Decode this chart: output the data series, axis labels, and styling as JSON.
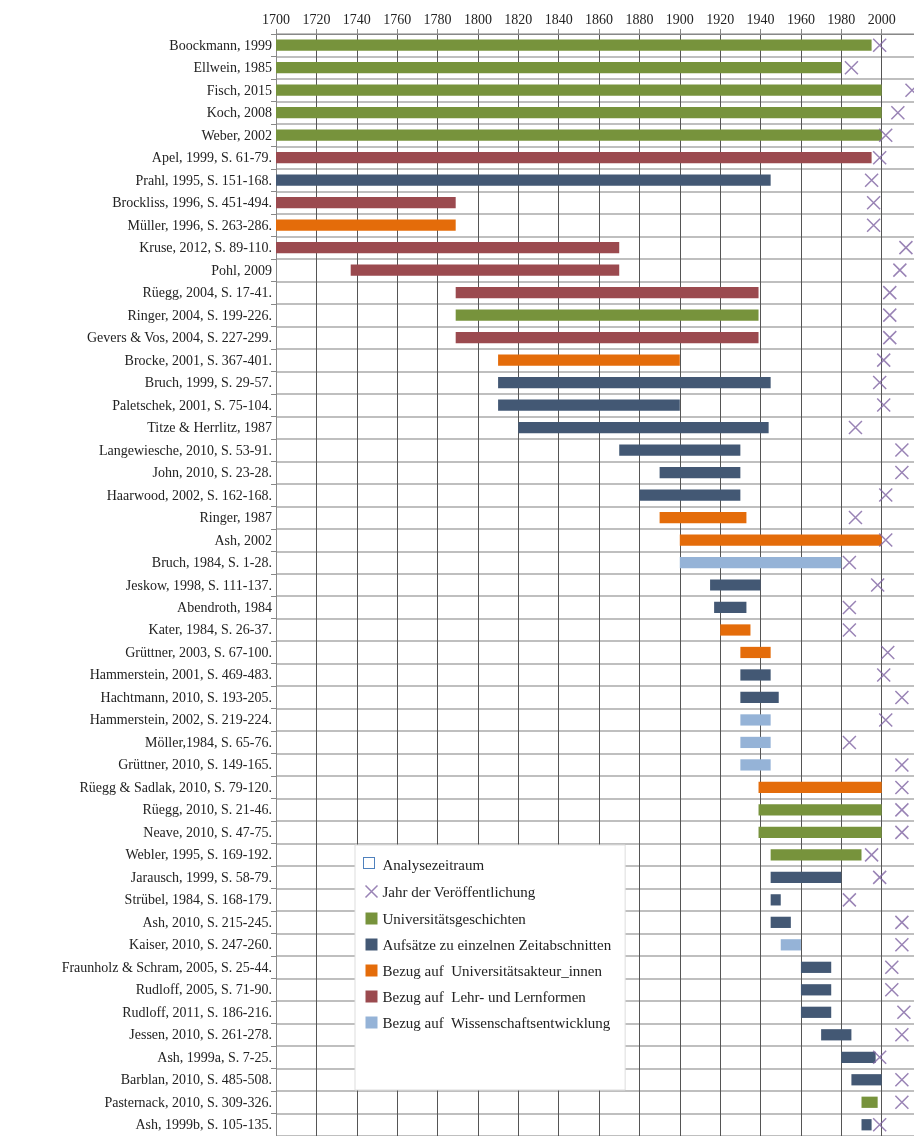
{
  "chart_data": {
    "type": "bar",
    "orientation": "horizontal",
    "legend": "bottom left",
    "legend_title": "Analysezeitraum",
    "grid": true,
    "marker": "cross",
    "xlim": [
      1700,
      2016
    ],
    "xticks": [
      1700,
      1720,
      1740,
      1760,
      1780,
      1800,
      1820,
      1840,
      1860,
      1880,
      1900,
      1920,
      1940,
      1960,
      1980,
      2000
    ],
    "categories": [
      "Boockmann, 1999",
      "Ellwein, 1985",
      "Fisch, 2015",
      "Koch, 2008",
      "Weber, 2002",
      "Apel, 1999, S. 61-79.",
      "Prahl, 1995, S. 151-168.",
      "Brockliss, 1996, S. 451-494.",
      "Müller, 1996, S. 263-286.",
      "Kruse, 2012, S. 89-110.",
      "Pohl, 2009",
      "Rüegg, 2004, S. 17-41.",
      "Ringer, 2004, S. 199-226.",
      "Gevers & Vos, 2004, S. 227-299.",
      "Brocke, 2001, S. 367-401.",
      "Bruch, 1999, S. 29-57.",
      "Paletschek, 2001, S. 75-104.",
      "Titze & Herrlitz, 1987",
      "Langewiesche, 2010, S. 53-91.",
      "John, 2010, S. 23-28.",
      "Haarwood, 2002, S. 162-168.",
      "Ringer, 1987",
      "Ash, 2002",
      "Bruch, 1984, S. 1-28.",
      "Jeskow, 1998, S. 111-137.",
      "Abendroth, 1984",
      "Kater, 1984, S. 26-37.",
      "Grüttner, 2003, S. 67-100.",
      "Hammerstein, 2001, S. 469-483.",
      "Hachtmann, 2010, S. 193-205.",
      "Hammerstein, 2002, S. 219-224.",
      "Möller,1984, S. 65-76.",
      "Grüttner, 2010, S. 149-165.",
      "Rüegg & Sadlak, 2010, S. 79-120.",
      "Rüegg, 2010, S. 21-46.",
      "Neave, 2010, S. 47-75.",
      "Webler, 1995, S. 169-192.",
      "Jarausch, 1999, S. 58-79.",
      "Strübel, 1984, S. 168-179.",
      "Ash, 2010, S. 215-245.",
      "Kaiser, 2010, S. 247-260.",
      "Fraunholz & Schram, 2005, S. 25-44.",
      "Rudloff, 2005, S. 71-90.",
      "Rudloff, 2011, S. 186-216.",
      "Jessen, 2010, S. 261-278.",
      "Ash, 1999a, S. 7-25.",
      "Barblan, 2010, S. 485-508.",
      "Pasternack, 2010, S. 309-326.",
      "Ash, 1999b, S. 105-135."
    ],
    "series": [
      {
        "name": "Jahr der Veröffentlichung",
        "type": "scatter",
        "color": "#8064a2",
        "values": [
          1999,
          1985,
          2015,
          2008,
          2002,
          1999,
          1995,
          1996,
          1996,
          2012,
          2009,
          2004,
          2004,
          2004,
          2001,
          1999,
          2001,
          1987,
          2010,
          2010,
          2002,
          1987,
          2002,
          1984,
          1998,
          1984,
          1984,
          2003,
          2001,
          2010,
          2002,
          1984,
          2010,
          2010,
          2010,
          2010,
          1995,
          1999,
          1984,
          2010,
          2010,
          2005,
          2005,
          2011,
          2010,
          1999,
          2010,
          2010,
          1999
        ]
      },
      {
        "name": "Universitätsgeschichten",
        "color": "#77933c",
        "base": [
          1700,
          1700,
          1700,
          1700,
          1700,
          null,
          null,
          null,
          null,
          null,
          null,
          null,
          1789,
          null,
          null,
          null,
          null,
          null,
          null,
          null,
          null,
          null,
          null,
          null,
          null,
          null,
          null,
          null,
          null,
          null,
          null,
          null,
          null,
          null,
          1939,
          1939,
          1945,
          null,
          null,
          null,
          null,
          null,
          null,
          null,
          null,
          null,
          null,
          1990,
          null
        ],
        "values": [
          295,
          280,
          300,
          300,
          300,
          null,
          null,
          null,
          null,
          null,
          null,
          null,
          150,
          null,
          null,
          null,
          null,
          null,
          null,
          null,
          null,
          null,
          null,
          null,
          null,
          null,
          null,
          null,
          null,
          null,
          null,
          null,
          null,
          null,
          61,
          61,
          45,
          null,
          null,
          null,
          null,
          null,
          null,
          null,
          null,
          null,
          null,
          8,
          null
        ]
      },
      {
        "name": "Aufsätze zu einzelnen Zeitabschnitten",
        "color": "#435874",
        "base": [
          null,
          null,
          null,
          null,
          null,
          null,
          1700,
          null,
          null,
          null,
          null,
          null,
          null,
          null,
          null,
          1810,
          1810,
          1820,
          1870,
          1890,
          1880,
          null,
          null,
          null,
          1915,
          1917,
          null,
          null,
          1930,
          1930,
          null,
          null,
          null,
          null,
          null,
          null,
          null,
          1945,
          1945,
          1945,
          null,
          1960,
          1960,
          1960,
          1970,
          1980,
          1985,
          null,
          1990
        ],
        "values": [
          null,
          null,
          null,
          null,
          null,
          null,
          245,
          null,
          null,
          null,
          null,
          null,
          null,
          null,
          null,
          135,
          90,
          124,
          60,
          40,
          50,
          null,
          null,
          null,
          25,
          16,
          null,
          null,
          15,
          19,
          null,
          null,
          null,
          null,
          null,
          null,
          null,
          35,
          5,
          10,
          null,
          15,
          15,
          15,
          15,
          17,
          15,
          null,
          5
        ]
      },
      {
        "name": "Bezug auf  Universitätsakteur_innen",
        "color": "#e46c0a",
        "base": [
          null,
          null,
          null,
          null,
          null,
          null,
          null,
          null,
          1700,
          null,
          null,
          null,
          null,
          null,
          1810,
          null,
          null,
          null,
          null,
          null,
          null,
          1890,
          1900,
          null,
          null,
          null,
          1920,
          1930,
          null,
          null,
          null,
          null,
          null,
          1939,
          null,
          null,
          null,
          null,
          null,
          null,
          null,
          null,
          null,
          null,
          null,
          null,
          null,
          null,
          null
        ],
        "values": [
          null,
          null,
          null,
          null,
          null,
          null,
          null,
          null,
          89,
          null,
          null,
          null,
          null,
          null,
          90,
          null,
          null,
          null,
          null,
          null,
          null,
          43,
          100,
          null,
          null,
          null,
          15,
          15,
          null,
          null,
          null,
          null,
          null,
          61,
          null,
          null,
          null,
          null,
          null,
          null,
          null,
          null,
          null,
          null,
          null,
          null,
          null,
          null,
          null
        ]
      },
      {
        "name": "Bezug auf  Lehr- und Lernformen",
        "color": "#9b4a4f",
        "base": [
          null,
          null,
          null,
          null,
          null,
          1700,
          null,
          1700,
          null,
          1700,
          1737,
          1789,
          null,
          1789,
          null,
          null,
          null,
          null,
          null,
          null,
          null,
          null,
          null,
          null,
          null,
          null,
          null,
          null,
          null,
          null,
          null,
          null,
          null,
          null,
          null,
          null,
          null,
          null,
          null,
          null,
          null,
          null,
          null,
          null,
          null,
          null,
          null,
          null,
          null
        ],
        "values": [
          null,
          null,
          null,
          null,
          null,
          295,
          null,
          89,
          null,
          170,
          133,
          150,
          null,
          150,
          null,
          null,
          null,
          null,
          null,
          null,
          null,
          null,
          null,
          null,
          null,
          null,
          null,
          null,
          null,
          null,
          null,
          null,
          null,
          null,
          null,
          null,
          null,
          null,
          null,
          null,
          null,
          null,
          null,
          null,
          null,
          null,
          null,
          null,
          null
        ]
      },
      {
        "name": "Bezug auf  Wissenschaftsentwicklung",
        "color": "#95b3d7",
        "base": [
          null,
          null,
          null,
          null,
          null,
          null,
          null,
          null,
          null,
          null,
          null,
          null,
          null,
          null,
          null,
          null,
          null,
          null,
          null,
          null,
          null,
          null,
          null,
          1900,
          null,
          null,
          null,
          null,
          null,
          null,
          1930,
          1930,
          1930,
          null,
          null,
          null,
          null,
          null,
          null,
          null,
          1950,
          null,
          null,
          null,
          null,
          null,
          null,
          null,
          null
        ],
        "values": [
          null,
          null,
          null,
          null,
          null,
          null,
          null,
          null,
          null,
          null,
          null,
          null,
          null,
          null,
          null,
          null,
          null,
          null,
          null,
          null,
          null,
          null,
          null,
          80,
          null,
          null,
          null,
          null,
          null,
          null,
          15,
          15,
          15,
          null,
          null,
          null,
          null,
          null,
          null,
          null,
          10,
          null,
          null,
          null,
          null,
          null,
          null,
          null,
          null
        ]
      }
    ]
  }
}
